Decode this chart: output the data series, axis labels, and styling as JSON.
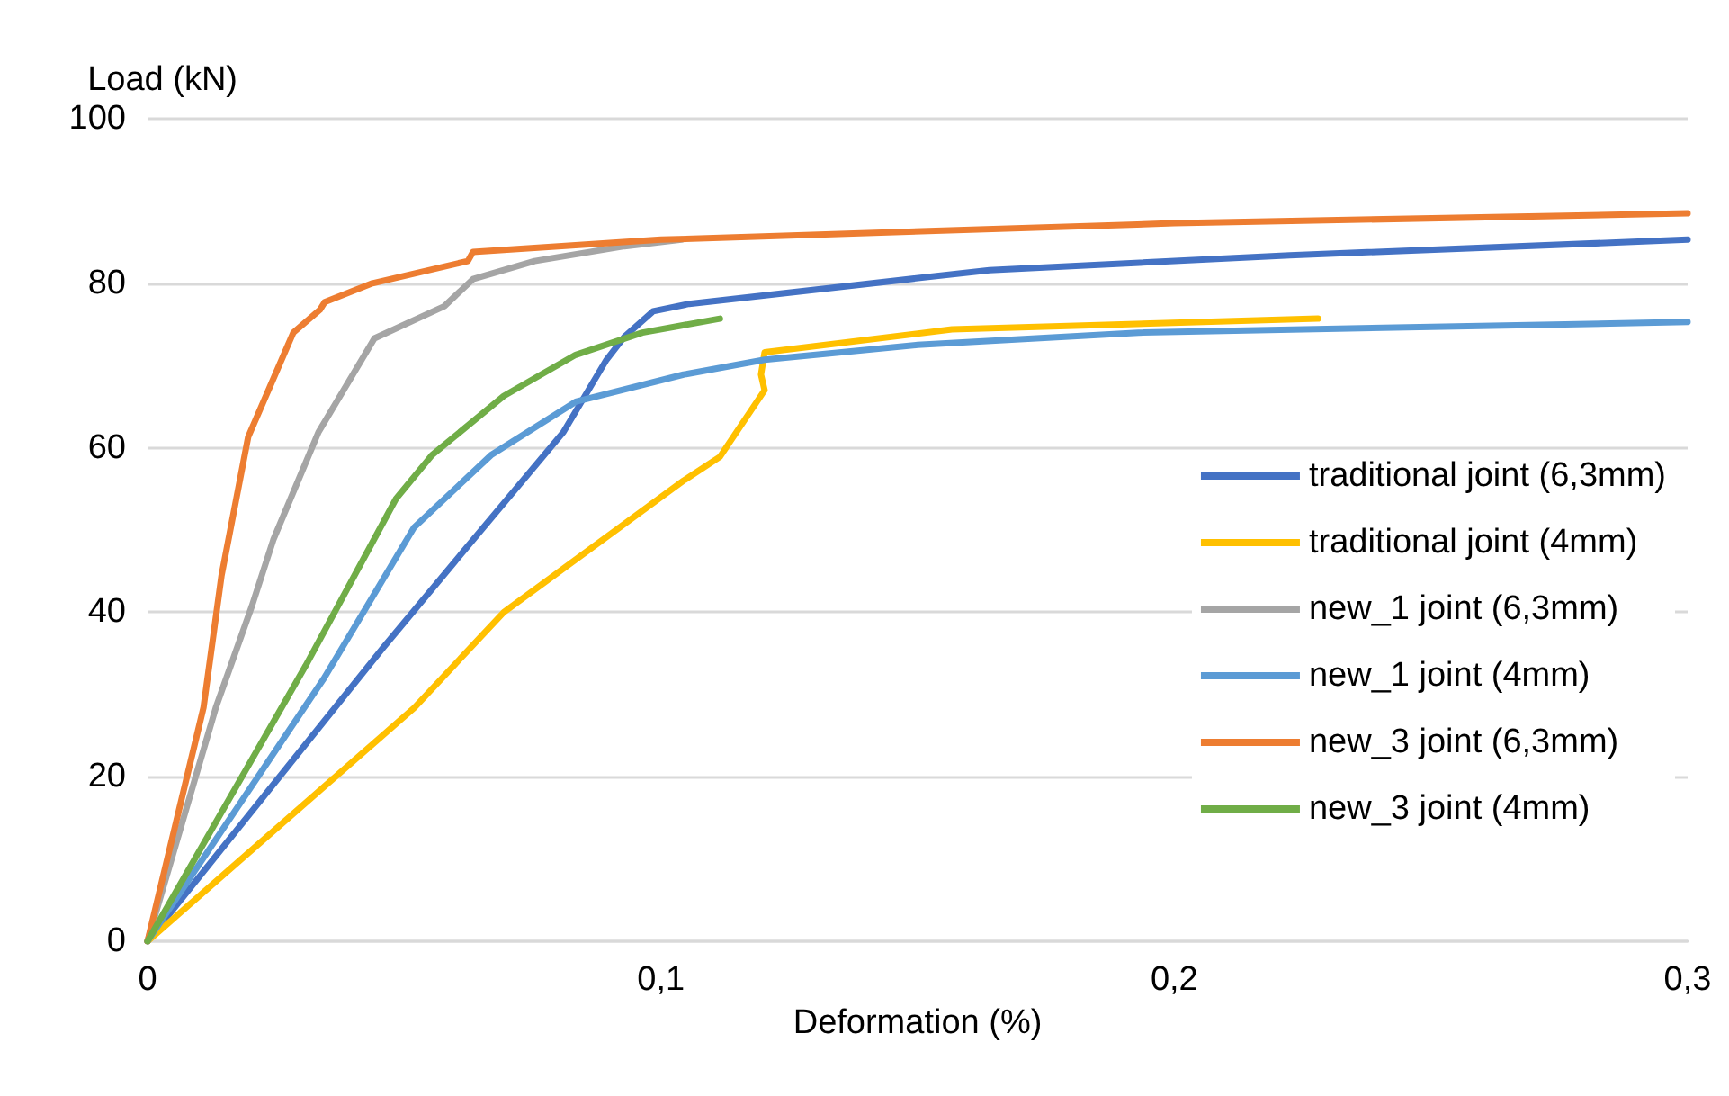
{
  "chart_data": {
    "type": "line",
    "xlabel": "Deformation (%)",
    "ylabel": "Load (kN)",
    "xlim": [
      0,
      0.3
    ],
    "xticks": [
      {
        "value": 0,
        "label": "0"
      },
      {
        "value": 0.1,
        "label": "0,1"
      },
      {
        "value": 0.2,
        "label": "0,2"
      },
      {
        "value": 0.3,
        "label": "0,3"
      }
    ],
    "ylim": [
      0,
      100
    ],
    "yticks": [
      0,
      20,
      40,
      60,
      80,
      100
    ],
    "grid": "y",
    "legend": "right",
    "marker": "none",
    "line_style": "solid",
    "series": [
      {
        "name": "traditional joint (6,3mm)",
        "color": "#4472c4",
        "x": [
          0,
          0.0459,
          0.0634,
          0.081,
          0.0894,
          0.0929,
          0.0985,
          0.1055,
          0.164,
          0.2225,
          0.3
        ],
        "values": [
          0,
          35.7,
          48.8,
          61.9,
          70.7,
          73.5,
          76.6,
          77.5,
          81.6,
          83.4,
          85.3
        ]
      },
      {
        "name": "traditional joint (4mm)",
        "color": "#ffc000",
        "x": [
          0,
          0.052,
          0.0694,
          0.1044,
          0.1115,
          0.1202,
          0.1195,
          0.1202,
          0.1567,
          0.228
        ],
        "values": [
          0,
          28.4,
          40,
          56,
          58.9,
          67,
          68.9,
          71.6,
          74.4,
          75.7
        ]
      },
      {
        "name": "new_1 joint (6,3mm)",
        "color": "#a5a5a5",
        "x": [
          0,
          0.0133,
          0.0203,
          0.0245,
          0.0333,
          0.0442,
          0.0578,
          0.0634,
          0.0754,
          0.0929,
          0.104
        ],
        "values": [
          0,
          28.4,
          40.7,
          48.8,
          61.9,
          73.3,
          77.2,
          80.5,
          82.7,
          84.5,
          85.3
        ]
      },
      {
        "name": "new_1 joint (4mm)",
        "color": "#5b9bd5",
        "x": [
          0,
          0.0343,
          0.0519,
          0.0669,
          0.0834,
          0.1044,
          0.1202,
          0.15,
          0.193,
          0.3
        ],
        "values": [
          0,
          31.9,
          50.3,
          59.1,
          65.6,
          68.9,
          70.7,
          72.5,
          74,
          75.3
        ]
      },
      {
        "name": "new_3 joint (6,3mm)",
        "color": "#ed7d31",
        "x": [
          0,
          0.0109,
          0.0144,
          0.0196,
          0.0284,
          0.0336,
          0.0345,
          0.0438,
          0.0624,
          0.0634,
          0.1,
          0.2,
          0.3
        ],
        "values": [
          0,
          28.4,
          44.4,
          61.3,
          74,
          76.8,
          77.7,
          80,
          82.7,
          83.8,
          85.3,
          87.3,
          88.5
        ]
      },
      {
        "name": "new_3 joint (4mm)",
        "color": "#70ad47",
        "x": [
          0,
          0.0308,
          0.0484,
          0.0554,
          0.0694,
          0.0834,
          0.0964,
          0.1115
        ],
        "values": [
          0,
          33.5,
          53.8,
          59.1,
          66.3,
          71.3,
          74,
          75.7
        ]
      }
    ]
  }
}
